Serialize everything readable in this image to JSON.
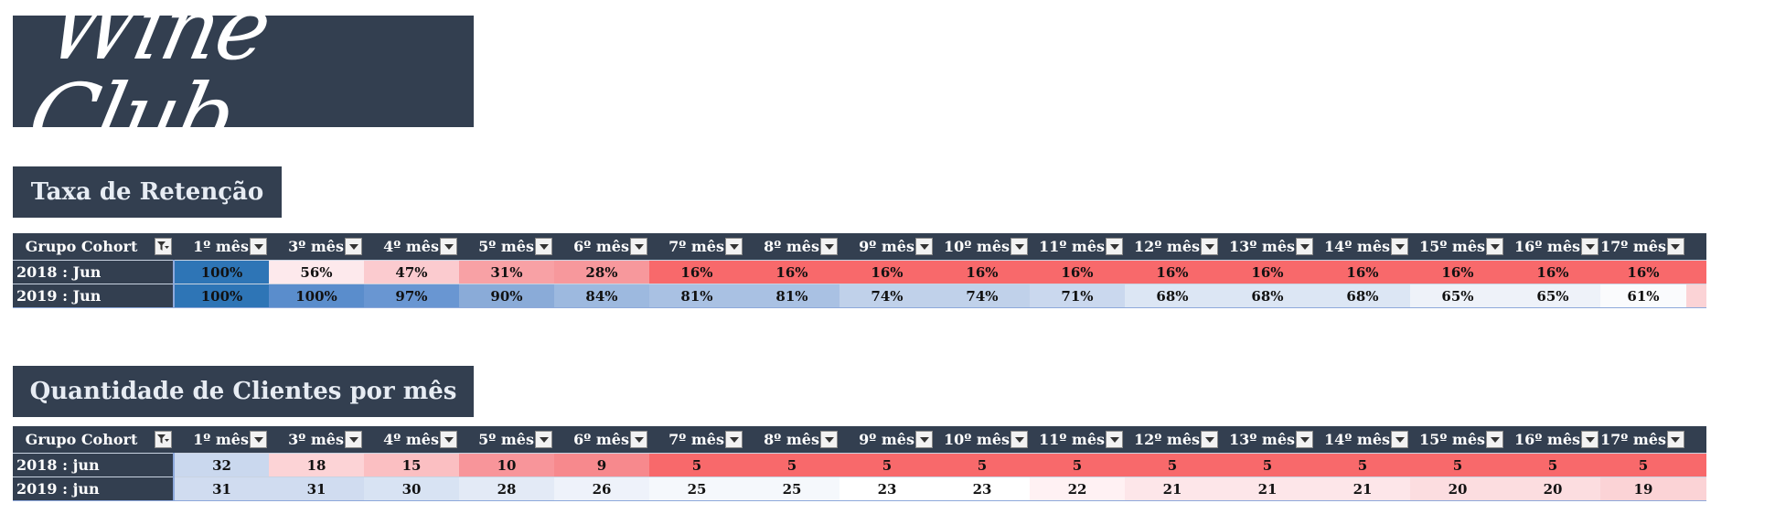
{
  "logo": {
    "text": "Wine Club"
  },
  "retention": {
    "title": "Taxa de Retenção",
    "row_header": "Grupo Cohort",
    "columns": [
      "1º mês",
      "3º mês",
      "4º mês",
      "5º mês",
      "6º mês",
      "7º mês",
      "8º mês",
      "9º mês",
      "10º mês",
      "11º mês",
      "12º mês",
      "13º mês",
      "14º mês",
      "15º mês",
      "16º mês",
      "17º mês"
    ],
    "rows": [
      {
        "label": "2018 : Jun",
        "values": [
          "100%",
          "56%",
          "47%",
          "31%",
          "28%",
          "16%",
          "16%",
          "16%",
          "16%",
          "16%",
          "16%",
          "16%",
          "16%",
          "16%",
          "16%",
          "16%"
        ],
        "colors": [
          "#2e75b6",
          "#fde9ec",
          "#fbcbcf",
          "#f8a1a5",
          "#f7989c",
          "#f8696b",
          "#f8696b",
          "#f8696b",
          "#f8696b",
          "#f8696b",
          "#f8696b",
          "#f8696b",
          "#f8696b",
          "#f8696b",
          "#f8696b",
          "#f8696b"
        ]
      },
      {
        "label": "2019 : Jun",
        "values": [
          "100%",
          "100%",
          "97%",
          "90%",
          "84%",
          "81%",
          "81%",
          "74%",
          "74%",
          "71%",
          "68%",
          "68%",
          "68%",
          "65%",
          "65%",
          "61%"
        ],
        "colors": [
          "#2e75b6",
          "#5a8dcc",
          "#6996d2",
          "#8aabd8",
          "#9db9df",
          "#a9c1e3",
          "#a9c1e3",
          "#c0d1ea",
          "#c0d1ea",
          "#cad8ee",
          "#dce6f4",
          "#dce6f4",
          "#dce6f4",
          "#eef2f9",
          "#eef2f9",
          "#fafbfd"
        ]
      }
    ]
  },
  "quantity": {
    "title": "Quantidade de Clientes por mês",
    "row_header": "Grupo Cohort",
    "columns": [
      "1º mês",
      "3º mês",
      "4º mês",
      "5º mês",
      "6º mês",
      "7º mês",
      "8º mês",
      "9º mês",
      "10º mês",
      "11º mês",
      "12º mês",
      "13º mês",
      "14º mês",
      "15º mês",
      "16º mês",
      "17º mês"
    ],
    "rows": [
      {
        "label": "2018 : jun",
        "values": [
          "32",
          "18",
          "15",
          "10",
          "9",
          "5",
          "5",
          "5",
          "5",
          "5",
          "5",
          "5",
          "5",
          "5",
          "5",
          "5"
        ],
        "colors": [
          "#cad8ee",
          "#fcd3d6",
          "#fbbfc2",
          "#f8959a",
          "#f7898d",
          "#f8696b",
          "#f8696b",
          "#f8696b",
          "#f8696b",
          "#f8696b",
          "#f8696b",
          "#f8696b",
          "#f8696b",
          "#f8696b",
          "#f8696b",
          "#f8696b"
        ]
      },
      {
        "label": "2019 : jun",
        "values": [
          "31",
          "31",
          "30",
          "28",
          "26",
          "25",
          "25",
          "23",
          "23",
          "22",
          "21",
          "21",
          "21",
          "20",
          "20",
          "19"
        ],
        "colors": [
          "#d0dcf0",
          "#d0dcf0",
          "#d8e3f3",
          "#e3eaf6",
          "#eef2fa",
          "#f5f8fc",
          "#f5f8fc",
          "#ffffff",
          "#ffffff",
          "#fff1f3",
          "#fde6e9",
          "#fde6e9",
          "#fde6e9",
          "#fcdde0",
          "#fcdde0",
          "#fbd3d6"
        ]
      }
    ]
  }
}
